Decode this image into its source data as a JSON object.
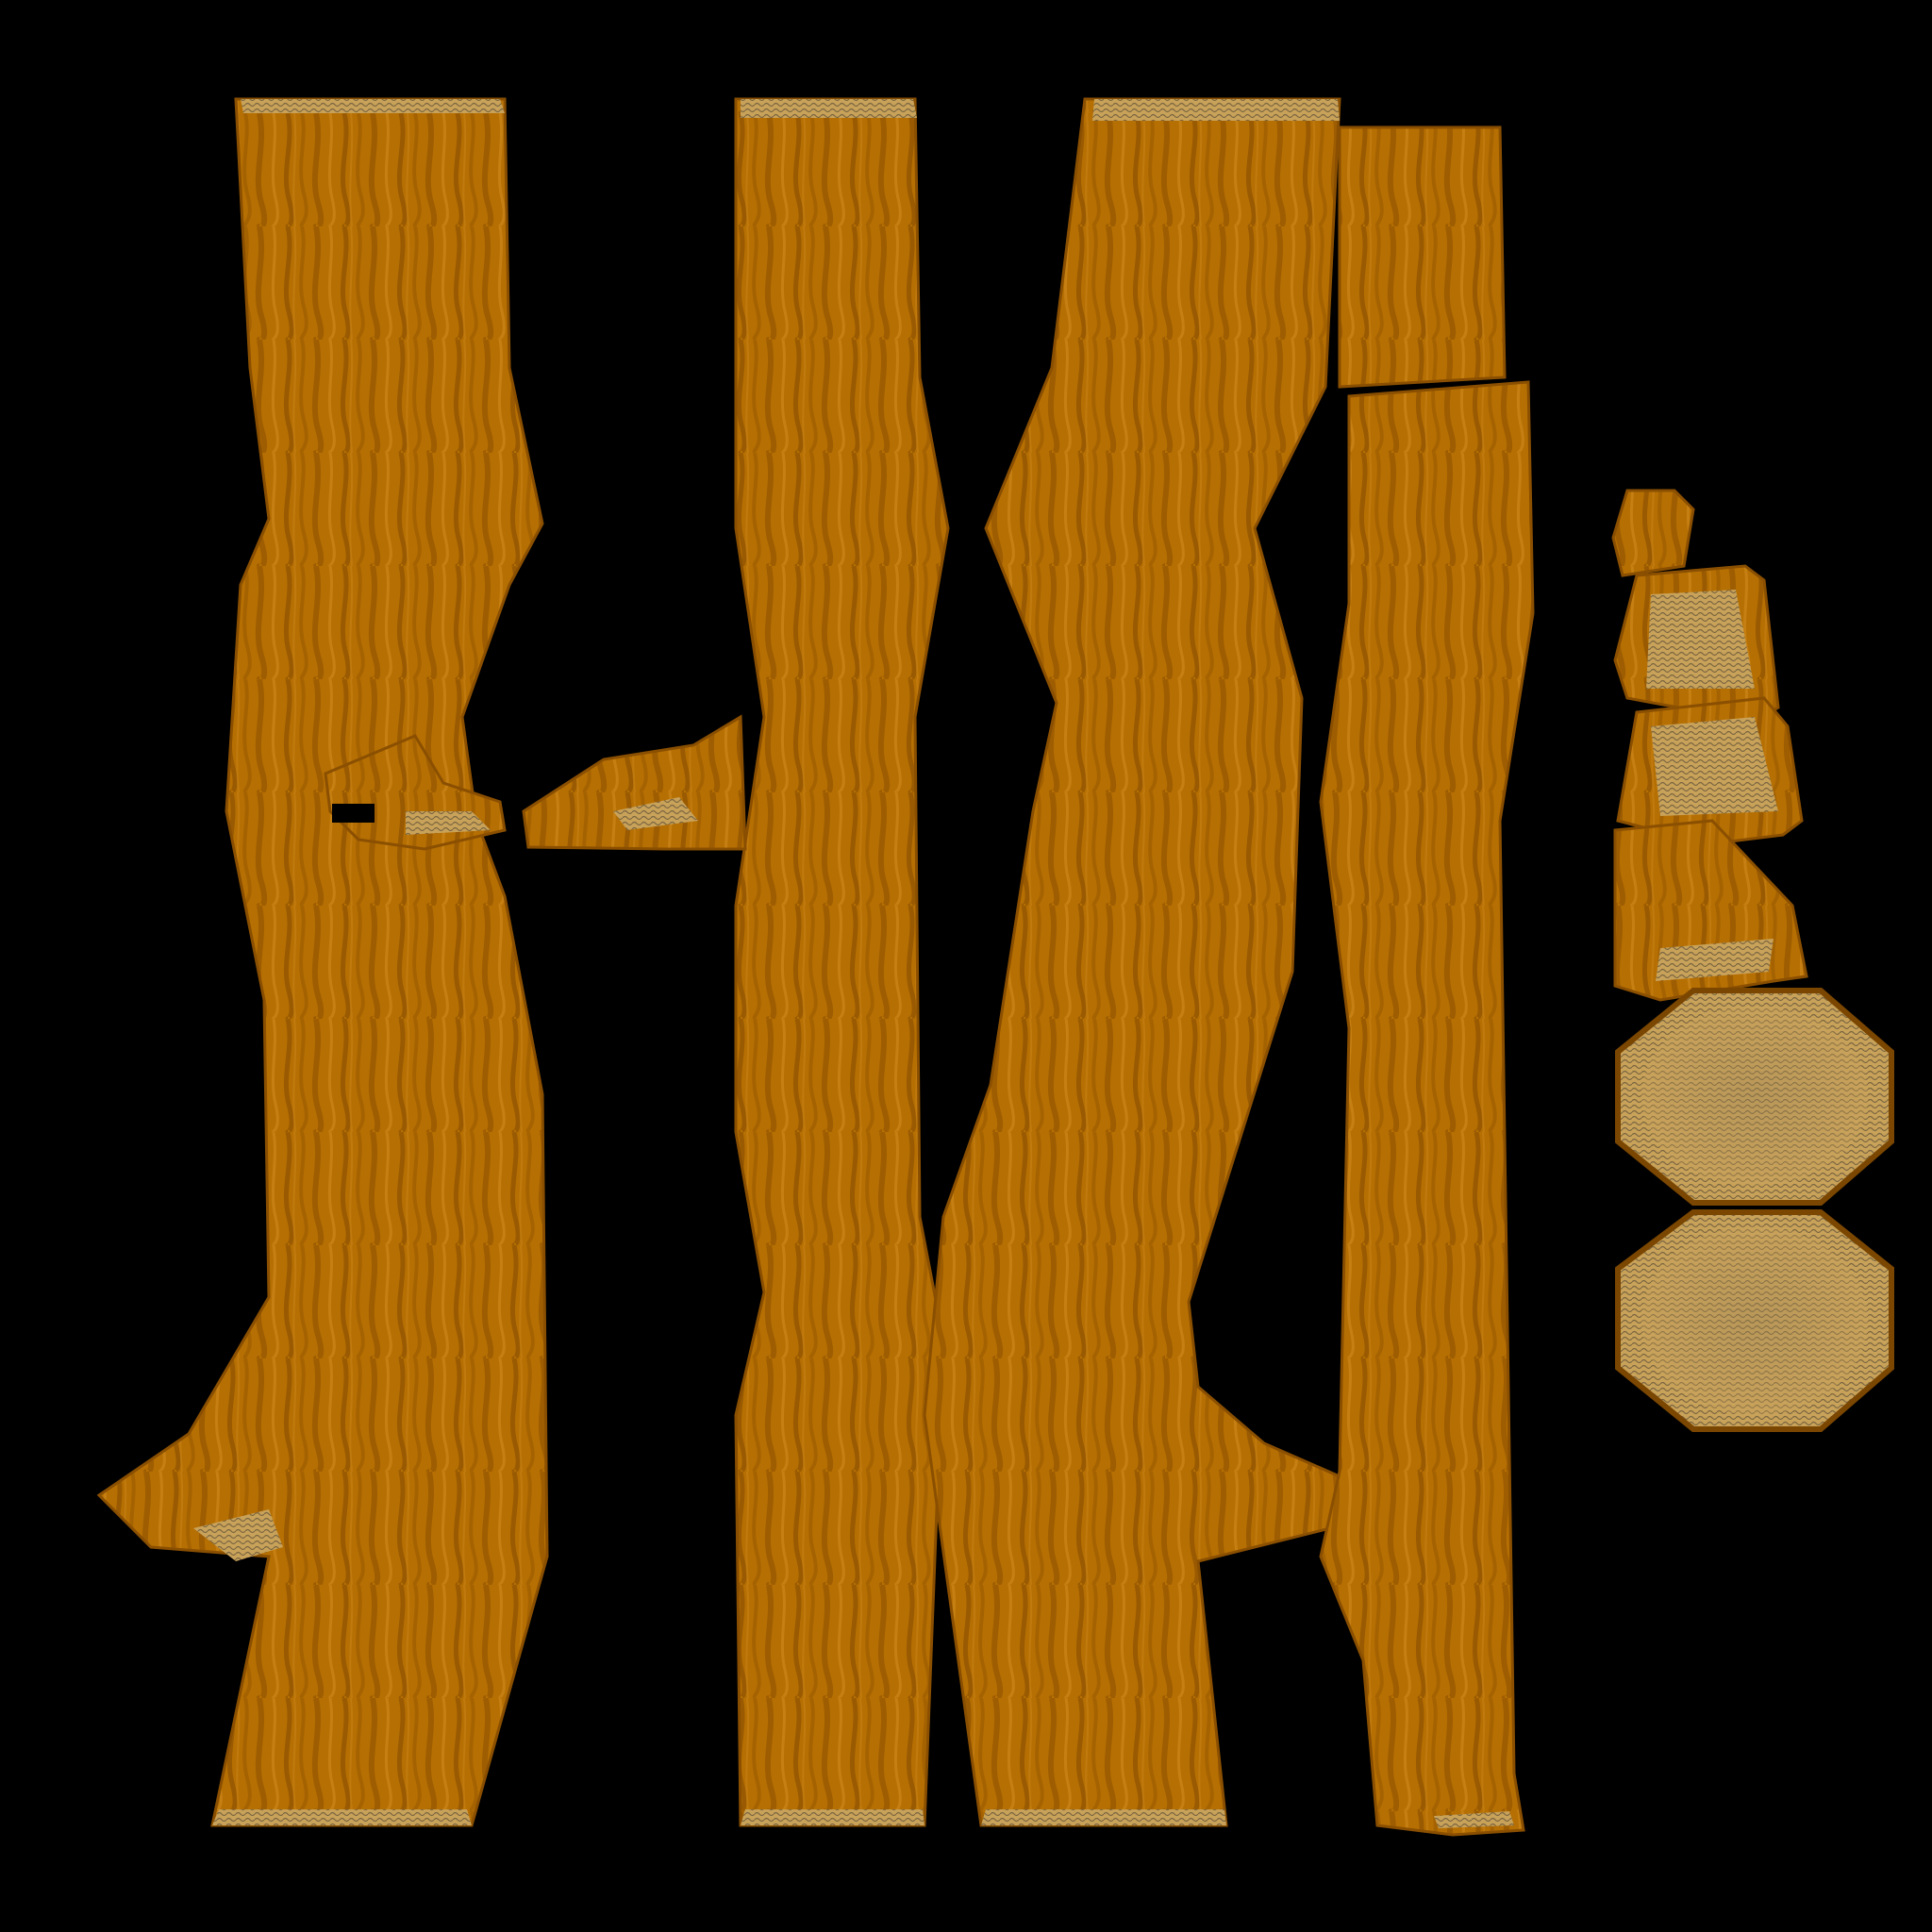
{
  "texture": {
    "background_color": "#000000",
    "wood_color": "#b86e00",
    "wood_dark_color": "#8a5000",
    "wood_light_color": "#c98a1a",
    "end_grain_color": "#c9a25a",
    "end_grain_ring_color": "#7a6640"
  }
}
